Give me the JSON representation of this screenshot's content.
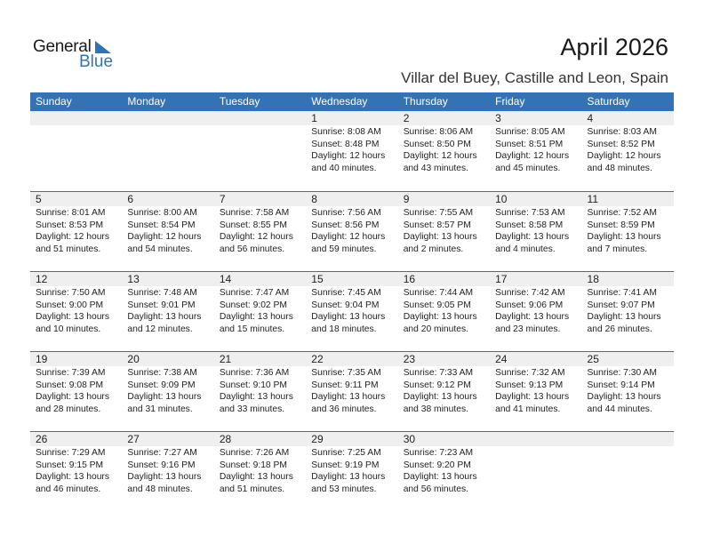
{
  "logo": {
    "line1": "General",
    "line2": "Blue"
  },
  "header": {
    "title": "April 2026",
    "subtitle": "Villar del Buey, Castille and Leon, Spain"
  },
  "colors": {
    "accent": "#3572b3",
    "band": "#efefef"
  },
  "weekdays": [
    "Sunday",
    "Monday",
    "Tuesday",
    "Wednesday",
    "Thursday",
    "Friday",
    "Saturday"
  ],
  "weeks": [
    [
      null,
      null,
      null,
      {
        "day": "1",
        "sunrise": "Sunrise: 8:08 AM",
        "sunset": "Sunset: 8:48 PM",
        "daylight1": "Daylight: 12 hours",
        "daylight2": "and 40 minutes."
      },
      {
        "day": "2",
        "sunrise": "Sunrise: 8:06 AM",
        "sunset": "Sunset: 8:50 PM",
        "daylight1": "Daylight: 12 hours",
        "daylight2": "and 43 minutes."
      },
      {
        "day": "3",
        "sunrise": "Sunrise: 8:05 AM",
        "sunset": "Sunset: 8:51 PM",
        "daylight1": "Daylight: 12 hours",
        "daylight2": "and 45 minutes."
      },
      {
        "day": "4",
        "sunrise": "Sunrise: 8:03 AM",
        "sunset": "Sunset: 8:52 PM",
        "daylight1": "Daylight: 12 hours",
        "daylight2": "and 48 minutes."
      }
    ],
    [
      {
        "day": "5",
        "sunrise": "Sunrise: 8:01 AM",
        "sunset": "Sunset: 8:53 PM",
        "daylight1": "Daylight: 12 hours",
        "daylight2": "and 51 minutes."
      },
      {
        "day": "6",
        "sunrise": "Sunrise: 8:00 AM",
        "sunset": "Sunset: 8:54 PM",
        "daylight1": "Daylight: 12 hours",
        "daylight2": "and 54 minutes."
      },
      {
        "day": "7",
        "sunrise": "Sunrise: 7:58 AM",
        "sunset": "Sunset: 8:55 PM",
        "daylight1": "Daylight: 12 hours",
        "daylight2": "and 56 minutes."
      },
      {
        "day": "8",
        "sunrise": "Sunrise: 7:56 AM",
        "sunset": "Sunset: 8:56 PM",
        "daylight1": "Daylight: 12 hours",
        "daylight2": "and 59 minutes."
      },
      {
        "day": "9",
        "sunrise": "Sunrise: 7:55 AM",
        "sunset": "Sunset: 8:57 PM",
        "daylight1": "Daylight: 13 hours",
        "daylight2": "and 2 minutes."
      },
      {
        "day": "10",
        "sunrise": "Sunrise: 7:53 AM",
        "sunset": "Sunset: 8:58 PM",
        "daylight1": "Daylight: 13 hours",
        "daylight2": "and 4 minutes."
      },
      {
        "day": "11",
        "sunrise": "Sunrise: 7:52 AM",
        "sunset": "Sunset: 8:59 PM",
        "daylight1": "Daylight: 13 hours",
        "daylight2": "and 7 minutes."
      }
    ],
    [
      {
        "day": "12",
        "sunrise": "Sunrise: 7:50 AM",
        "sunset": "Sunset: 9:00 PM",
        "daylight1": "Daylight: 13 hours",
        "daylight2": "and 10 minutes."
      },
      {
        "day": "13",
        "sunrise": "Sunrise: 7:48 AM",
        "sunset": "Sunset: 9:01 PM",
        "daylight1": "Daylight: 13 hours",
        "daylight2": "and 12 minutes."
      },
      {
        "day": "14",
        "sunrise": "Sunrise: 7:47 AM",
        "sunset": "Sunset: 9:02 PM",
        "daylight1": "Daylight: 13 hours",
        "daylight2": "and 15 minutes."
      },
      {
        "day": "15",
        "sunrise": "Sunrise: 7:45 AM",
        "sunset": "Sunset: 9:04 PM",
        "daylight1": "Daylight: 13 hours",
        "daylight2": "and 18 minutes."
      },
      {
        "day": "16",
        "sunrise": "Sunrise: 7:44 AM",
        "sunset": "Sunset: 9:05 PM",
        "daylight1": "Daylight: 13 hours",
        "daylight2": "and 20 minutes."
      },
      {
        "day": "17",
        "sunrise": "Sunrise: 7:42 AM",
        "sunset": "Sunset: 9:06 PM",
        "daylight1": "Daylight: 13 hours",
        "daylight2": "and 23 minutes."
      },
      {
        "day": "18",
        "sunrise": "Sunrise: 7:41 AM",
        "sunset": "Sunset: 9:07 PM",
        "daylight1": "Daylight: 13 hours",
        "daylight2": "and 26 minutes."
      }
    ],
    [
      {
        "day": "19",
        "sunrise": "Sunrise: 7:39 AM",
        "sunset": "Sunset: 9:08 PM",
        "daylight1": "Daylight: 13 hours",
        "daylight2": "and 28 minutes."
      },
      {
        "day": "20",
        "sunrise": "Sunrise: 7:38 AM",
        "sunset": "Sunset: 9:09 PM",
        "daylight1": "Daylight: 13 hours",
        "daylight2": "and 31 minutes."
      },
      {
        "day": "21",
        "sunrise": "Sunrise: 7:36 AM",
        "sunset": "Sunset: 9:10 PM",
        "daylight1": "Daylight: 13 hours",
        "daylight2": "and 33 minutes."
      },
      {
        "day": "22",
        "sunrise": "Sunrise: 7:35 AM",
        "sunset": "Sunset: 9:11 PM",
        "daylight1": "Daylight: 13 hours",
        "daylight2": "and 36 minutes."
      },
      {
        "day": "23",
        "sunrise": "Sunrise: 7:33 AM",
        "sunset": "Sunset: 9:12 PM",
        "daylight1": "Daylight: 13 hours",
        "daylight2": "and 38 minutes."
      },
      {
        "day": "24",
        "sunrise": "Sunrise: 7:32 AM",
        "sunset": "Sunset: 9:13 PM",
        "daylight1": "Daylight: 13 hours",
        "daylight2": "and 41 minutes."
      },
      {
        "day": "25",
        "sunrise": "Sunrise: 7:30 AM",
        "sunset": "Sunset: 9:14 PM",
        "daylight1": "Daylight: 13 hours",
        "daylight2": "and 44 minutes."
      }
    ],
    [
      {
        "day": "26",
        "sunrise": "Sunrise: 7:29 AM",
        "sunset": "Sunset: 9:15 PM",
        "daylight1": "Daylight: 13 hours",
        "daylight2": "and 46 minutes."
      },
      {
        "day": "27",
        "sunrise": "Sunrise: 7:27 AM",
        "sunset": "Sunset: 9:16 PM",
        "daylight1": "Daylight: 13 hours",
        "daylight2": "and 48 minutes."
      },
      {
        "day": "28",
        "sunrise": "Sunrise: 7:26 AM",
        "sunset": "Sunset: 9:18 PM",
        "daylight1": "Daylight: 13 hours",
        "daylight2": "and 51 minutes."
      },
      {
        "day": "29",
        "sunrise": "Sunrise: 7:25 AM",
        "sunset": "Sunset: 9:19 PM",
        "daylight1": "Daylight: 13 hours",
        "daylight2": "and 53 minutes."
      },
      {
        "day": "30",
        "sunrise": "Sunrise: 7:23 AM",
        "sunset": "Sunset: 9:20 PM",
        "daylight1": "Daylight: 13 hours",
        "daylight2": "and 56 minutes."
      },
      null,
      null
    ]
  ]
}
